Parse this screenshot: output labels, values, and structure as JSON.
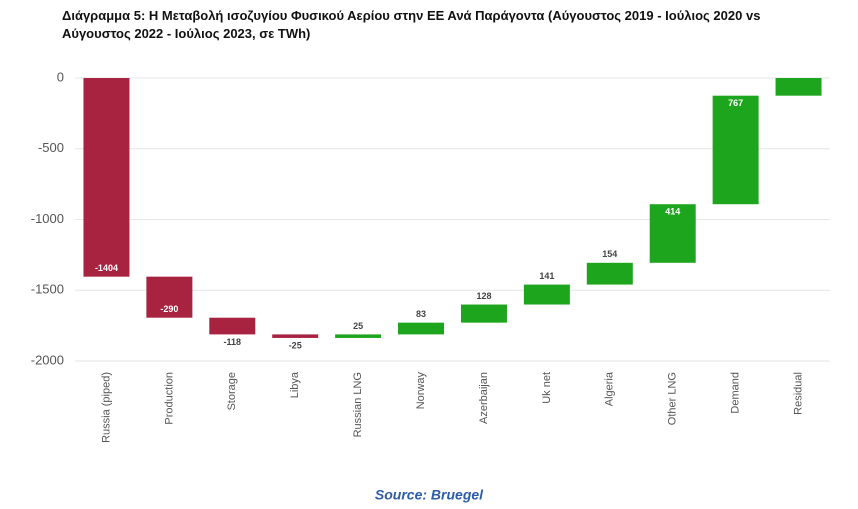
{
  "chart_data": {
    "type": "waterfall",
    "title_lines": [
      "Διάγραμμα 5: Η Μεταβολή ισοζυγίου Φυσικού Αερίου στην ΕΕ Ανά Παράγοντα (Αύγουστος 2019 - Ιούλιος 2020 vs",
      "Αύγουστος 2022 - Ιούλιος 2023, σε TWh)"
    ],
    "categories": [
      "Russia (piped)",
      "Production",
      "Storage",
      "Libya",
      "Russian LNG",
      "Norway",
      "Azerbaijan",
      "Uk net",
      "Algeria",
      "Other LNG",
      "Demand",
      "Residual"
    ],
    "values": [
      -1404,
      -290,
      -118,
      -25,
      25,
      83,
      128,
      141,
      154,
      414,
      767,
      125
    ],
    "value_labels": [
      "-1404",
      "-290",
      "-118",
      "-25",
      "25",
      "83",
      "128",
      "141",
      "154",
      "414",
      "767",
      null
    ],
    "colors": {
      "negative": "#a8233f",
      "positive": "#1ea51e"
    },
    "ylim": [
      -2000,
      0
    ],
    "yticks": [
      0,
      -500,
      -1000,
      -1500,
      -2000
    ],
    "grid": true,
    "source": "Source: Bruegel"
  }
}
